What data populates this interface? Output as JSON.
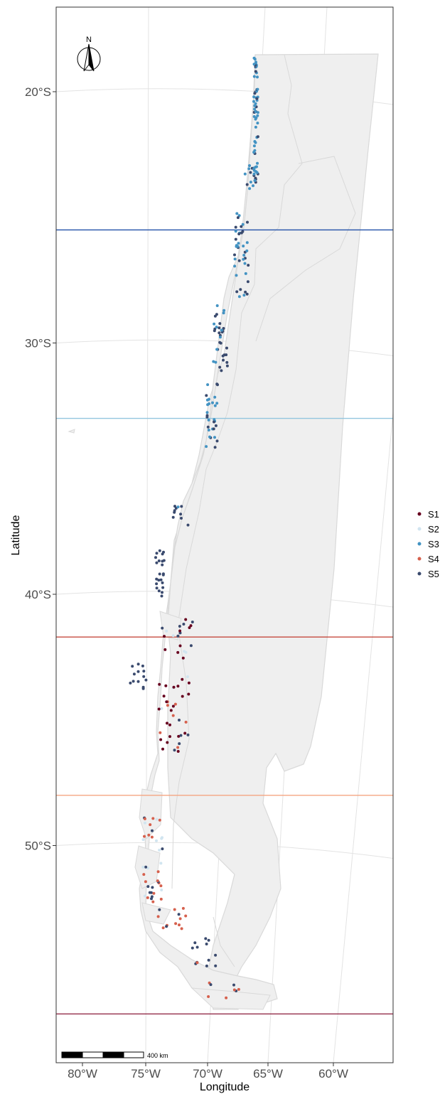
{
  "map": {
    "x_axis_label": "Longitude",
    "y_axis_label": "Latitude",
    "x_ticks": [
      {
        "lon": -80,
        "label": "80°W"
      },
      {
        "lon": -75,
        "label": "75°W"
      },
      {
        "lon": -70,
        "label": "70°W"
      },
      {
        "lon": -65,
        "label": "65°W"
      },
      {
        "lon": -60,
        "label": "60°W"
      }
    ],
    "y_ticks": [
      {
        "lat": -20,
        "label": "20°S"
      },
      {
        "lat": -30,
        "label": "30°S"
      },
      {
        "lat": -40,
        "label": "40°S"
      },
      {
        "lat": -50,
        "label": "50°S"
      }
    ],
    "north_arrow_label": "N",
    "scale_bar_label": "400 km",
    "land_color": "#efefef",
    "coast_color": "#d9d9d9",
    "graticule_color": "#e3e3e3"
  },
  "legend": {
    "items": [
      {
        "label": "S1",
        "color": "#67001f"
      },
      {
        "label": "S2",
        "color": "#d1e5f0"
      },
      {
        "label": "S3",
        "color": "#4393c3"
      },
      {
        "label": "S4",
        "color": "#d6604d"
      },
      {
        "label": "S5",
        "color": "#3a4a6e"
      }
    ]
  },
  "boundaries": [
    {
      "lat": -25.5,
      "color": "#2150a8"
    },
    {
      "lat": -33.0,
      "color": "#92c5de"
    },
    {
      "lat": -41.7,
      "color": "#c0392b"
    },
    {
      "lat": -48.0,
      "color": "#f4a582"
    },
    {
      "lat": -56.7,
      "color": "#8b1c3a"
    }
  ]
}
